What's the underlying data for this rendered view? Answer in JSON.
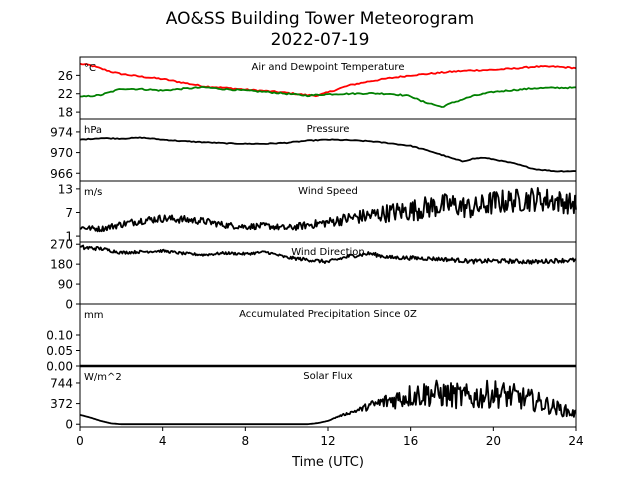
{
  "chart_data": {
    "type": "line",
    "title": "AO&SS Building Tower Meteorogram",
    "subtitle": "2022-07-19",
    "xlabel": "Time (UTC)",
    "xlim": [
      0,
      24
    ],
    "xticks": [
      "0",
      "4",
      "8",
      "12",
      "16",
      "20",
      "24"
    ],
    "panels": [
      {
        "title": "Air and Dewpoint Temperature",
        "unit": "°C",
        "ylim": [
          16.5,
          30
        ],
        "yticks": [
          "18",
          "22",
          "26"
        ],
        "ytick_values": [
          18,
          22,
          26
        ],
        "series": [
          {
            "color": "#ff0000",
            "x": [
              0,
              0.5,
              1,
              1.5,
              2,
              3,
              4,
              5,
              6,
              7,
              8,
              9,
              10,
              11,
              11.5,
              12,
              13,
              14,
              15,
              16,
              17,
              18,
              19,
              20,
              21,
              22,
              23,
              24
            ],
            "values": [
              28.5,
              28.2,
              27.5,
              26.8,
              26.3,
              25.7,
              25.2,
              24.4,
              23.6,
              23.3,
              22.9,
              22.6,
              22.2,
              21.7,
              21.6,
              22.3,
              23.8,
              24.7,
              25.4,
              26.0,
              26.4,
              26.8,
              27.1,
              27.2,
              27.5,
              27.9,
              27.9,
              27.6
            ]
          },
          {
            "color": "#008000",
            "x": [
              0,
              1,
              2,
              3,
              4,
              5,
              6,
              7,
              8,
              9,
              10,
              11,
              12,
              13,
              14,
              15,
              16,
              16.5,
              17,
              17.5,
              18,
              19,
              20,
              21,
              22,
              23,
              24
            ],
            "values": [
              21.3,
              21.7,
              23.1,
              23.0,
              22.7,
              23.1,
              23.4,
              23.0,
              22.7,
              22.4,
              22.0,
              21.6,
              21.9,
              22.0,
              22.1,
              22.0,
              21.5,
              20.4,
              19.8,
              19.1,
              20.0,
              21.5,
              22.4,
              22.8,
              23.2,
              23.3,
              23.3
            ]
          }
        ]
      },
      {
        "title": "Pressure",
        "unit": "hPa",
        "ylim": [
          964.5,
          976.5
        ],
        "yticks": [
          "966",
          "970",
          "974"
        ],
        "ytick_values": [
          966,
          970,
          974
        ],
        "series": [
          {
            "color": "#000000",
            "x": [
              0,
              1,
              2,
              3,
              4,
              5,
              6,
              7,
              8,
              9,
              10,
              11,
              12,
              13,
              14,
              15,
              16,
              17,
              18,
              18.5,
              19,
              19.5,
              20,
              21,
              22,
              23,
              24
            ],
            "values": [
              972.5,
              972.8,
              972.7,
              972.9,
              972.5,
              972.2,
              972.0,
              971.8,
              971.7,
              971.7,
              971.9,
              972.3,
              972.5,
              972.4,
              972.2,
              971.8,
              971.3,
              970.2,
              968.9,
              968.3,
              968.8,
              969.0,
              968.7,
              967.9,
              966.8,
              966.4,
              966.4
            ]
          }
        ]
      },
      {
        "title": "Wind Speed",
        "unit": "m/s",
        "ylim": [
          -0.5,
          15
        ],
        "yticks": [
          "1",
          "7",
          "13"
        ],
        "ytick_values": [
          1,
          7,
          13
        ],
        "series": [
          {
            "color": "#000000",
            "x": [
              0,
              1,
              2,
              3,
              4,
              5,
              6,
              7,
              8,
              9,
              10,
              11,
              12,
              13,
              14,
              15,
              16,
              17,
              18,
              19,
              20,
              21,
              22,
              23,
              24
            ],
            "values": [
              3.2,
              2.8,
              4.0,
              5.0,
              5.5,
              5.2,
              4.8,
              3.8,
              3.4,
              3.6,
              3.0,
              3.8,
              4.5,
              5.5,
              6.2,
              7.0,
              7.5,
              8.5,
              9.0,
              8.0,
              9.5,
              10.0,
              10.5,
              10.0,
              9.0
            ],
            "noise": [
              0.6,
              0.7,
              0.9,
              1.0,
              1.0,
              1.0,
              0.9,
              0.8,
              0.8,
              0.8,
              0.8,
              1.0,
              1.2,
              1.6,
              2.0,
              2.4,
              2.8,
              3.0,
              3.0,
              2.8,
              3.2,
              3.0,
              3.2,
              3.0,
              2.6
            ]
          }
        ]
      },
      {
        "title": "Wind Direction",
        "unit": "",
        "ylim": [
          0,
          280
        ],
        "yticks": [
          "0",
          "90",
          "180",
          "270"
        ],
        "ytick_values": [
          0,
          90,
          180,
          270
        ],
        "series": [
          {
            "color": "#000000",
            "x": [
              0,
              1,
              2,
              3,
              4,
              5,
              6,
              7,
              8,
              9,
              10,
              11,
              12,
              13,
              14,
              15,
              16,
              17,
              18,
              19,
              20,
              21,
              22,
              23,
              24
            ],
            "values": [
              255,
              250,
              232,
              236,
              240,
              228,
              222,
              230,
              226,
              235,
              210,
              200,
              190,
              215,
              228,
              210,
              208,
              205,
              200,
              192,
              195,
              193,
              190,
              196,
              198
            ],
            "noise": [
              12,
              8,
              7,
              6,
              6,
              6,
              6,
              6,
              6,
              6,
              7,
              8,
              8,
              9,
              9,
              9,
              9,
              9,
              9,
              10,
              10,
              10,
              10,
              10,
              10
            ]
          }
        ]
      },
      {
        "title": "Accumulated Precipitation Since 0Z",
        "unit": "mm",
        "ylim": [
          0,
          0.2
        ],
        "yticks": [
          "0.00",
          "0.05",
          "0.10"
        ],
        "ytick_values": [
          0.0,
          0.05,
          0.1
        ],
        "series": [
          {
            "color": "#000000",
            "x": [
              0,
              24
            ],
            "values": [
              0,
              0
            ]
          }
        ]
      },
      {
        "title": "Solar Flux",
        "unit": "W/m^2",
        "ylim": [
          -50,
          1050
        ],
        "yticks": [
          "0",
          "372",
          "744"
        ],
        "ytick_values": [
          0,
          372,
          744
        ],
        "series": [
          {
            "color": "#000000",
            "x": [
              0,
              0.5,
              1,
              1.5,
              2,
              4,
              6,
              8,
              10,
              11,
              11.5,
              12,
              12.5,
              13,
              13.5,
              14,
              15,
              16,
              17,
              18,
              19,
              20,
              21,
              22,
              23,
              24
            ],
            "values": [
              170,
              120,
              60,
              15,
              0,
              0,
              0,
              0,
              0,
              0,
              20,
              60,
              140,
              200,
              260,
              330,
              430,
              520,
              560,
              520,
              480,
              560,
              500,
              420,
              300,
              180
            ],
            "noise": [
              0,
              0,
              0,
              0,
              0,
              0,
              0,
              0,
              0,
              0,
              0,
              0,
              10,
              25,
              40,
              80,
              160,
              220,
              250,
              240,
              230,
              260,
              230,
              190,
              140,
              80
            ]
          }
        ]
      }
    ]
  }
}
